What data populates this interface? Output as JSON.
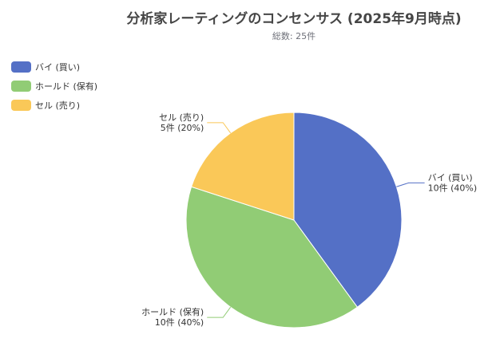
{
  "chart_data": {
    "type": "pie",
    "title": "分析家レーティングのコンセンサス (2025年9月時点)",
    "subtitle": "総数: 25件",
    "legend_position": "top-left",
    "slices": [
      {
        "name": "バイ (買い)",
        "value": 10,
        "percent": 40,
        "label_value": "10件 (40%)",
        "color": "#5470c6"
      },
      {
        "name": "ホールド (保有)",
        "value": 10,
        "percent": 40,
        "label_value": "10件 (40%)",
        "color": "#91cc75"
      },
      {
        "name": "セル (売り)",
        "value": 5,
        "percent": 20,
        "label_value": "5件 (20%)",
        "color": "#fac858"
      }
    ]
  }
}
